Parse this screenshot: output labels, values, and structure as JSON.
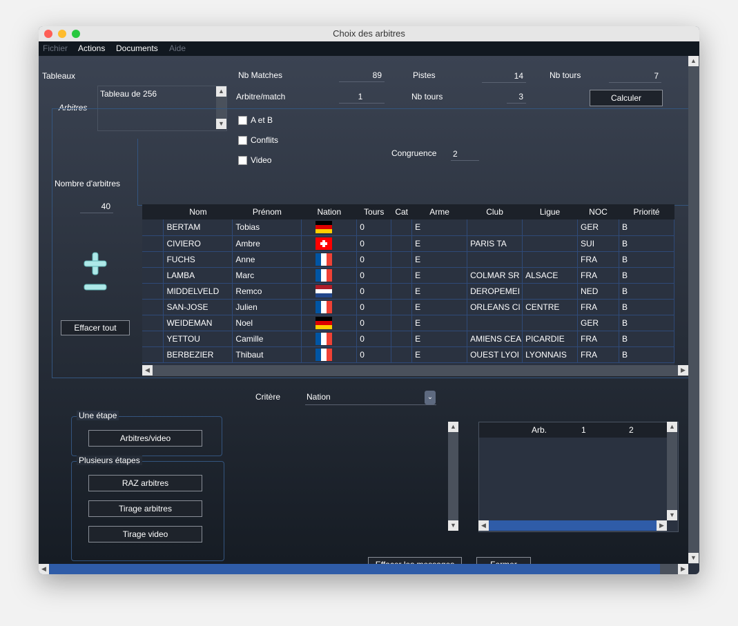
{
  "window": {
    "title": "Choix des arbitres"
  },
  "menu": {
    "items": [
      {
        "label": "Fichier",
        "enabled": false
      },
      {
        "label": "Actions",
        "enabled": true
      },
      {
        "label": "Documents",
        "enabled": true
      },
      {
        "label": "Aide",
        "enabled": false
      }
    ]
  },
  "tableaux": {
    "label": "Tableaux",
    "selected": "Tableau de 256"
  },
  "stats": {
    "nb_matches_label": "Nb Matches",
    "nb_matches": "89",
    "pistes_label": "Pistes",
    "pistes": "14",
    "nb_tours_label": "Nb tours",
    "nb_tours": "7",
    "arbitre_match_label": "Arbitre/match",
    "arbitre_match": "1",
    "nb_tours2_label": "Nb tours",
    "nb_tours2": "3",
    "calculer_label": "Calculer"
  },
  "arbitres": {
    "section_label": "Arbitres",
    "a_et_b": "A et B",
    "conflits": "Conflits",
    "video": "Video",
    "congruence_label": "Congruence",
    "congruence": "2",
    "nombre_label": "Nombre d'arbitres",
    "nombre": "40",
    "effacer_tout": "Effacer tout"
  },
  "grid": {
    "columns": [
      "",
      "Nom",
      "Prénom",
      "Nation",
      "Tours",
      "Cat",
      "Arme",
      "Club",
      "Ligue",
      "NOC",
      "Priorité"
    ],
    "rows": [
      {
        "nom": "BERTAM",
        "prenom": "Tobias",
        "flag": "GER",
        "tours": "0",
        "cat": "",
        "arme": "E",
        "club": "",
        "ligue": "",
        "noc": "GER",
        "priorite": "B"
      },
      {
        "nom": "CIVIERO",
        "prenom": "Ambre",
        "flag": "SUI",
        "tours": "0",
        "cat": "",
        "arme": "E",
        "club": "PARIS TA",
        "ligue": "",
        "noc": "SUI",
        "priorite": "B"
      },
      {
        "nom": "FUCHS",
        "prenom": "Anne",
        "flag": "FRA",
        "tours": "0",
        "cat": "",
        "arme": "E",
        "club": "",
        "ligue": "",
        "noc": "FRA",
        "priorite": "B"
      },
      {
        "nom": "LAMBA",
        "prenom": "Marc",
        "flag": "FRA",
        "tours": "0",
        "cat": "",
        "arme": "E",
        "club": "COLMAR SR",
        "ligue": "ALSACE",
        "noc": "FRA",
        "priorite": "B"
      },
      {
        "nom": "MIDDELVELD",
        "prenom": "Remco",
        "flag": "NED",
        "tours": "0",
        "cat": "",
        "arme": "E",
        "club": "DEROPEMEI",
        "ligue": "",
        "noc": "NED",
        "priorite": "B"
      },
      {
        "nom": "SAN-JOSE",
        "prenom": "Julien",
        "flag": "FRA",
        "tours": "0",
        "cat": "",
        "arme": "E",
        "club": "ORLEANS CI",
        "ligue": "CENTRE",
        "noc": "FRA",
        "priorite": "B"
      },
      {
        "nom": "WEIDEMAN",
        "prenom": "Noel",
        "flag": "GER",
        "tours": "0",
        "cat": "",
        "arme": "E",
        "club": "",
        "ligue": "",
        "noc": "GER",
        "priorite": "B"
      },
      {
        "nom": "YETTOU",
        "prenom": "Camille",
        "flag": "FRA",
        "tours": "0",
        "cat": "",
        "arme": "E",
        "club": "AMIENS CEA",
        "ligue": "PICARDIE",
        "noc": "FRA",
        "priorite": "B"
      },
      {
        "nom": "BERBEZIER",
        "prenom": "Thibaut",
        "flag": "FRA",
        "tours": "0",
        "cat": "",
        "arme": "E",
        "club": "OUEST LYOI",
        "ligue": "LYONNAIS",
        "noc": "FRA",
        "priorite": "B"
      }
    ]
  },
  "critere": {
    "label": "Critère",
    "value": "Nation"
  },
  "une_etape": {
    "label": "Une étape",
    "arbitres_video": "Arbitres/video"
  },
  "plusieurs_etapes": {
    "label": "Plusieurs étapes",
    "raz": "RAZ arbitres",
    "tirage_arbitres": "Tirage arbitres",
    "tirage_video": "Tirage video"
  },
  "result_table": {
    "columns": [
      "Arb.",
      "1",
      "2"
    ]
  },
  "footer": {
    "effacer_messages": "Effacer les messages",
    "fermer": "Fermer"
  },
  "colors": {
    "accent": "#2f5ca8",
    "panel_border": "#34557f",
    "bg_top": "#3b4352",
    "bg_bottom": "#161c24"
  }
}
